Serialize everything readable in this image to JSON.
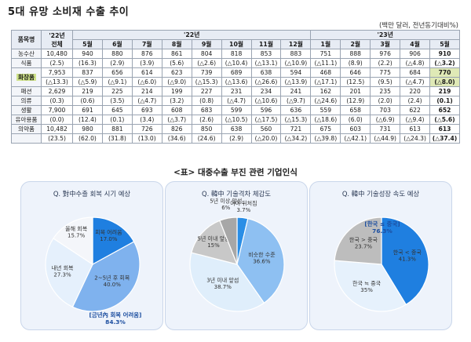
{
  "title": "5대 유망 소비재 수출 추이",
  "unit": "(백만 달러, 전년동기대비%)",
  "table": {
    "h_item": "품목명",
    "h_total_line1": "'22년",
    "h_total_line2": "전체",
    "h_year22": "'22년",
    "h_year23": "'23년",
    "months22": [
      "5월",
      "6월",
      "7월",
      "8월",
      "9월",
      "10월",
      "11월",
      "12월"
    ],
    "months23": [
      "1월",
      "2월",
      "3월",
      "4월",
      "5월"
    ],
    "rows": [
      {
        "cat1": "농수산",
        "cat2": "식품",
        "v": [
          "10,480",
          "940",
          "880",
          "876",
          "861",
          "804",
          "818",
          "853",
          "883",
          "751",
          "888",
          "976",
          "906",
          "910"
        ],
        "p": [
          "(2.5)",
          "(16.3)",
          "(2.9)",
          "(3.9)",
          "(5.6)",
          "(△2.6)",
          "(△10.4)",
          "(△13.1)",
          "(△10.9)",
          "(△11.1)",
          "(8.9)",
          "(2.2)",
          "(△4.8)",
          "(△3.2)"
        ]
      },
      {
        "cat1": "화장품",
        "cat2": "",
        "v": [
          "7,953",
          "837",
          "656",
          "614",
          "623",
          "739",
          "689",
          "638",
          "594",
          "468",
          "646",
          "775",
          "684",
          "770"
        ],
        "p": [
          "(△13.3)",
          "(△5.9)",
          "(△9.1)",
          "(△6.0)",
          "(△9.0)",
          "(△15.3)",
          "(△13.6)",
          "(△26.6)",
          "(△13.9)",
          "(△17.1)",
          "(12.5)",
          "(9.5)",
          "(△4.7)",
          "(△8.0)"
        ]
      },
      {
        "cat1": "패션",
        "cat2": "의류",
        "v": [
          "2,629",
          "219",
          "225",
          "214",
          "199",
          "227",
          "231",
          "234",
          "241",
          "162",
          "201",
          "235",
          "220",
          "219"
        ],
        "p": [
          "(0.3)",
          "(0.6)",
          "(3.5)",
          "(△4.7)",
          "(3.2)",
          "(0.8)",
          "(△4.7)",
          "(△10.6)",
          "(△9.7)",
          "(△24.6)",
          "(12.9)",
          "(2.0)",
          "(2.4)",
          "(0.1)"
        ]
      },
      {
        "cat1": "생활",
        "cat2": "유아용품",
        "v": [
          "7,900",
          "691",
          "645",
          "693",
          "608",
          "683",
          "599",
          "596",
          "636",
          "559",
          "658",
          "703",
          "622",
          "652"
        ],
        "p": [
          "(0.0)",
          "(12.4)",
          "(0.1)",
          "(3.4)",
          "(△3.7)",
          "(2.6)",
          "(△10.5)",
          "(△17.5)",
          "(△15.3)",
          "(△18.6)",
          "(6.0)",
          "(△6.9)",
          "(△9.4)",
          "(△5.6)"
        ]
      },
      {
        "cat1": "의약품",
        "cat2": "",
        "v": [
          "10,482",
          "980",
          "881",
          "726",
          "826",
          "850",
          "638",
          "560",
          "721",
          "675",
          "603",
          "731",
          "613",
          "613"
        ],
        "p": [
          "(23.5)",
          "(62.0)",
          "(31.8)",
          "(13.0)",
          "(34.6)",
          "(24.6)",
          "(2.9)",
          "(△20.0)",
          "(△34.2)",
          "(△39.8)",
          "(△42.1)",
          "(△44.9)",
          "(△24.3)",
          "(△37.4)"
        ]
      }
    ]
  },
  "caption": "<표> 대중수출 부진 관련 기업인식",
  "chart_data": [
    {
      "type": "pie",
      "title": "Q. 對中수출 회복 시기 예상",
      "categories": [
        "회복 어려움",
        "2~5년 후 회복",
        "내년 회복",
        "올해 회복"
      ],
      "values": [
        17.0,
        40.0,
        27.3,
        15.7
      ],
      "labels": [
        "회복 어려움\n17.0%",
        "2~5년 후 회복\n40.0%",
        "내년 회복\n27.3%",
        "올해 회복\n15.7%"
      ],
      "annotation": "[금년內 회복 어려움]\n84.3%"
    },
    {
      "type": "pie",
      "title": "Q. 韓中 기술격차 체감도",
      "categories": [
        "이미 뒤처짐",
        "비슷한 수준",
        "3년 이내 앞섬",
        "5년 이내 앞섬",
        "5년 이상 앞섬"
      ],
      "values": [
        3.7,
        36.6,
        38.7,
        15.0,
        6.0
      ],
      "labels": [
        "이미 뒤처짐\n3.7%",
        "비슷한 수준\n36.6%",
        "3년 이내 앞섬\n38.7%",
        "5년 이내 앞섬\n15%",
        "5년 이상 앞섬\n6%"
      ]
    },
    {
      "type": "pie",
      "title": "Q. 韓中 기술성장 속도 예상",
      "categories": [
        "한국 < 중국",
        "한국 ≒ 중국",
        "한국 > 중국"
      ],
      "values": [
        41.3,
        35.0,
        23.7
      ],
      "labels": [
        "한국 < 중국\n41.3%",
        "한국 ≒ 중국\n35%",
        "한국 > 중국\n23.7%"
      ],
      "annotation": "[한국 ≤ 중국]\n76.3%"
    }
  ]
}
